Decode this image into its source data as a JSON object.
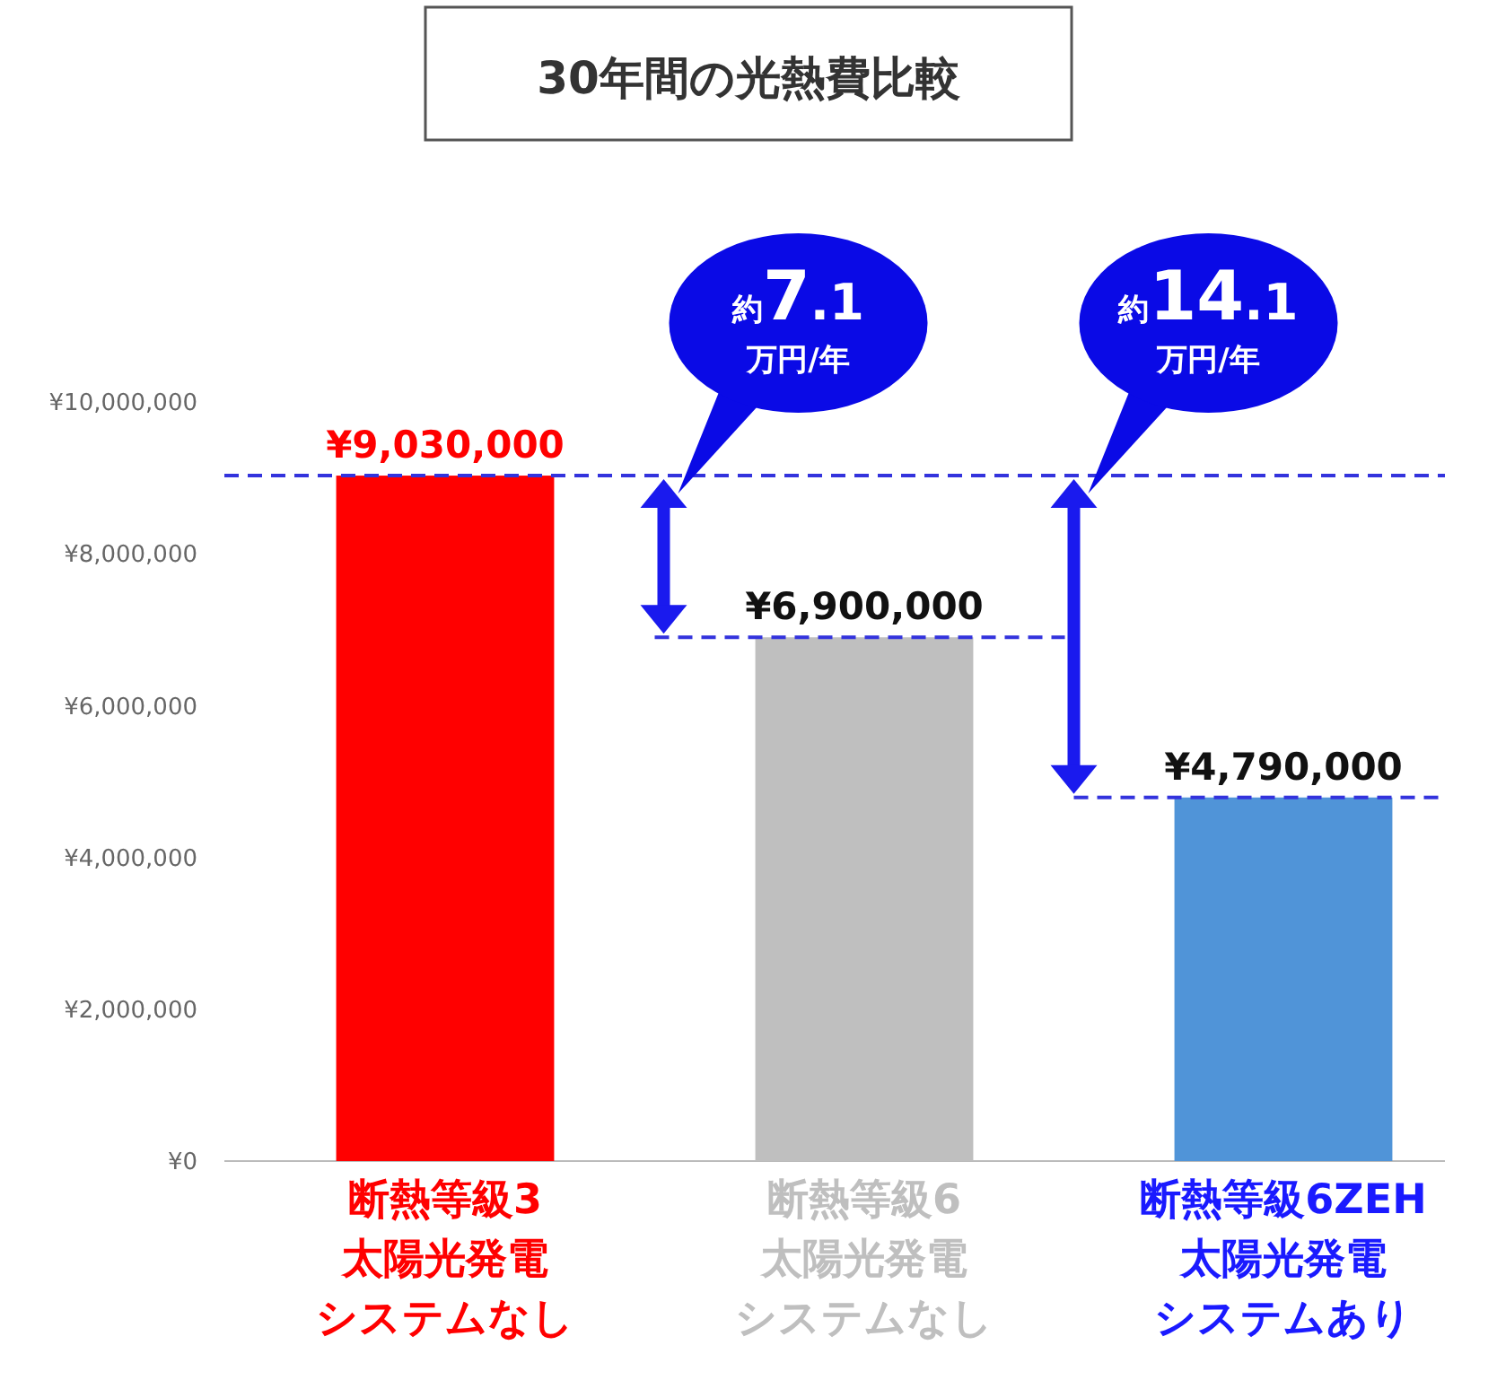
{
  "chart_data": {
    "type": "bar",
    "title": "30年間の光熱費比較",
    "categories": [
      "断熱等級3太陽光発電システムなし",
      "断熱等級6太陽光発電システムなし",
      "断熱等級6ZEH太陽光発電システムあり"
    ],
    "values": [
      9030000,
      6900000,
      4790000
    ],
    "colors": [
      "#ff0000",
      "#bfbfbf",
      "#5094d8"
    ],
    "value_labels": [
      "¥9,030,000",
      "¥6,900,000",
      "¥4,790,000"
    ],
    "ylim": [
      0,
      10000000
    ],
    "yticks": [
      {
        "value": 0,
        "label": "¥0"
      },
      {
        "value": 2000000,
        "label": "¥2,000,000"
      },
      {
        "value": 4000000,
        "label": "¥4,000,000"
      },
      {
        "value": 6000000,
        "label": "¥6,000,000"
      },
      {
        "value": 8000000,
        "label": "¥8,000,000"
      },
      {
        "value": 10000000,
        "label": "¥10,000,000"
      }
    ],
    "ref_lines": [
      {
        "axis": "y",
        "value": 9030000,
        "color": "#3333dd",
        "line_style": "dashed"
      },
      {
        "axis": "y",
        "value": 6900000,
        "color": "#3333dd",
        "line_style": "dashed"
      },
      {
        "axis": "y",
        "value": 4790000,
        "color": "#3333dd",
        "line_style": "dashed"
      }
    ],
    "annotations": [
      "約7.1\n万円/年",
      "約14.1\n万円/年"
    ],
    "grid": false
  }
}
